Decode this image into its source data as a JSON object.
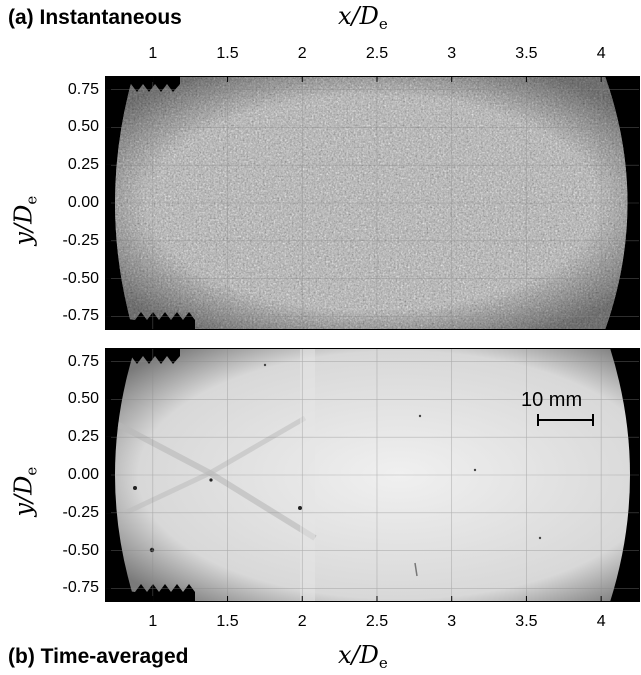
{
  "panels": {
    "top": {
      "title": "(a) Instantaneous",
      "image_desc": "schlieren-instantaneous"
    },
    "bottom": {
      "title": "(b) Time-averaged",
      "image_desc": "schlieren-time-averaged",
      "scale_bar_label": "10 mm"
    }
  },
  "axes": {
    "x_var": "x/D",
    "x_sub": "e",
    "y_var": "y/D",
    "y_sub": "e",
    "x_ticks": [
      "1",
      "1.5",
      "2",
      "2.5",
      "3",
      "3.5",
      "4"
    ],
    "x_tick_values": [
      1,
      1.5,
      2,
      2.5,
      3,
      3.5,
      4
    ],
    "y_ticks": [
      "0.75",
      "0.50",
      "0.25",
      "0.00",
      "-0.25",
      "-0.50",
      "-0.75"
    ],
    "y_tick_values": [
      0.75,
      0.5,
      0.25,
      0,
      -0.25,
      -0.5,
      -0.75
    ],
    "x_range": [
      0.68,
      4.26
    ],
    "y_range": [
      -0.84,
      0.84
    ]
  }
}
